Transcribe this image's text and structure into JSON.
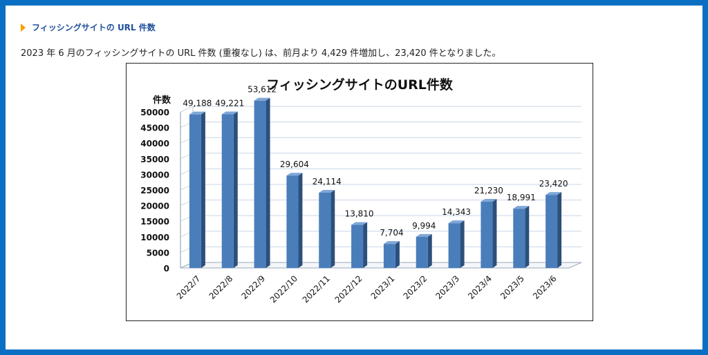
{
  "section": {
    "heading": "フィッシングサイトの URL 件数",
    "description": "2023 年 6 月のフィッシングサイトの URL 件数 (重複なし) は、前月より 4,429 件増加し、23,420 件となりました。"
  },
  "colors": {
    "frame": "#0a6fc2",
    "heading": "#1f4e9a",
    "bullet": "#f5a100",
    "bar_front": "#4a7ebb",
    "bar_side": "#2c4f7c",
    "bar_top": "#7fa7d8"
  },
  "chart_data": {
    "type": "bar",
    "title": "フィッシングサイトのURL件数",
    "ylabel": "件数",
    "xlabel": "",
    "categories": [
      "2022/7",
      "2022/8",
      "2022/9",
      "2022/10",
      "2022/11",
      "2022/12",
      "2023/1",
      "2023/2",
      "2023/3",
      "2023/4",
      "2023/5",
      "2023/6"
    ],
    "values": [
      49188,
      49221,
      53612,
      29604,
      24114,
      13810,
      7704,
      9994,
      14343,
      21230,
      18991,
      23420
    ],
    "data_labels": [
      "49,188",
      "49,221",
      "53,612",
      "29,604",
      "24,114",
      "13,810",
      "7,704",
      "9,994",
      "14,343",
      "21,230",
      "18,991",
      "23,420"
    ],
    "ylim": [
      0,
      50000
    ],
    "yticks": [
      "0",
      "5000",
      "10000",
      "15000",
      "20000",
      "25000",
      "30000",
      "35000",
      "40000",
      "45000",
      "50000"
    ],
    "grid": true,
    "legend": "none"
  }
}
